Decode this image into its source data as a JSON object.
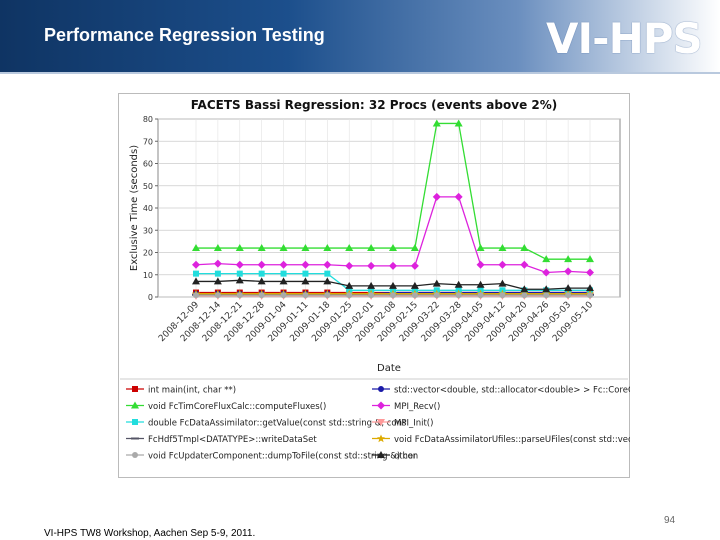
{
  "slide": {
    "title": "Performance Regression Testing",
    "logo_text": "VI-HPS",
    "footer": "VI-HPS TW8 Workshop, Aachen Sep 5-9, 2011.",
    "page_number": "94"
  },
  "chart_data": {
    "type": "line",
    "title": "FACETS Bassi Regression: 32 Procs (events above 2%)",
    "xlabel": "Date",
    "ylabel": "Exclusive Time (seconds)",
    "ylim": [
      0,
      80
    ],
    "yticks": [
      0,
      10,
      20,
      30,
      40,
      50,
      60,
      70,
      80
    ],
    "grid": true,
    "legend_position": "bottom",
    "categories": [
      "2008-12-09",
      "2008-12-14",
      "2008-12-21",
      "2008-12-28",
      "2009-01-04",
      "2009-01-11",
      "2009-01-18",
      "2009-01-25",
      "2009-02-01",
      "2009-02-08",
      "2009-02-15",
      "2009-03-22",
      "2009-03-28",
      "2009-04-05",
      "2009-04-12",
      "2009-04-20",
      "2009-04-26",
      "2009-05-03",
      "2009-05-10"
    ],
    "series": [
      {
        "name": "int main(int, char **)",
        "color": "#cc0000",
        "marker": "square",
        "values": [
          2,
          2,
          2,
          2,
          2,
          2,
          2,
          2,
          2,
          2,
          2,
          2,
          2,
          2,
          2,
          2,
          2,
          2,
          2
        ]
      },
      {
        "name": "std::vector<double, std::allocator<double> > Fc::CoreCellUpdate...",
        "color": "#1a1aa8",
        "marker": "circle",
        "values": [
          1.5,
          1.5,
          1.5,
          1.5,
          1.5,
          1.5,
          1.5,
          1.5,
          1.5,
          2,
          2,
          2,
          2,
          2,
          2,
          2,
          2,
          2,
          2
        ]
      },
      {
        "name": "void FcTimCoreFluxCalc::computeFluxes()",
        "color": "#33dd33",
        "marker": "triangle",
        "values": [
          22,
          22,
          22,
          22,
          22,
          22,
          22,
          22,
          22,
          22,
          22,
          78,
          78,
          22,
          22,
          22,
          17,
          17,
          17
        ]
      },
      {
        "name": "MPI_Recv()",
        "color": "#dd22dd",
        "marker": "diamond",
        "values": [
          14.5,
          15,
          14.5,
          14.5,
          14.5,
          14.5,
          14.5,
          14,
          14,
          14,
          14,
          45,
          45,
          14.5,
          14.5,
          14.5,
          11,
          11.5,
          11
        ]
      },
      {
        "name": "double FcDataAssimilator::getValue(const std::string &, cons",
        "color": "#22dddd",
        "marker": "square",
        "values": [
          10.5,
          10.5,
          10.5,
          10.5,
          10.5,
          10.5,
          10.5,
          3,
          3,
          3,
          3,
          3,
          3,
          3,
          3,
          3,
          3,
          3,
          3
        ]
      },
      {
        "name": "MPI_Init()",
        "color": "#ff9999",
        "marker": "tri-down",
        "values": [
          0.5,
          0.5,
          0.5,
          0.5,
          0.5,
          0.5,
          0.5,
          0.5,
          0.5,
          0.5,
          0.5,
          0.5,
          0.5,
          0.5,
          0.5,
          0.5,
          0.5,
          0.5,
          0.5
        ]
      },
      {
        "name": "FcHdf5Tmpl<DATATYPE>::writeDataSet",
        "color": "#555566",
        "marker": "dash",
        "values": [
          1,
          1,
          1,
          1,
          1,
          1,
          1,
          1,
          1,
          1,
          1,
          1,
          1,
          1,
          1,
          1,
          1,
          1,
          1
        ]
      },
      {
        "name": "void FcDataAssimilatorUfiles::parseUFiles(const std::vector<...",
        "color": "#ddaa00",
        "marker": "star",
        "values": [
          1.5,
          1.5,
          1.5,
          1.5,
          1.5,
          1.5,
          1.5,
          1.5,
          1.5,
          1.5,
          1.5,
          1.5,
          1.5,
          1.5,
          1.5,
          1.5,
          1.5,
          1.5,
          1.5
        ]
      },
      {
        "name": "void FcUpdaterComponent::dumpToFile(const std::string &) con",
        "color": "#aaaaaa",
        "marker": "circle",
        "values": [
          0.8,
          0.8,
          0.8,
          0.8,
          0.8,
          0.8,
          0.8,
          0.8,
          0.8,
          0.8,
          0.8,
          0.8,
          0.8,
          0.8,
          0.8,
          0.8,
          0.8,
          0.8,
          0.8
        ]
      },
      {
        "name": "other",
        "color": "#222222",
        "marker": "triangle",
        "values": [
          7,
          7,
          7.5,
          7,
          7,
          7,
          7,
          5,
          5,
          5,
          5,
          6,
          5.5,
          5.5,
          6,
          3.5,
          3.5,
          4,
          4
        ]
      }
    ]
  }
}
